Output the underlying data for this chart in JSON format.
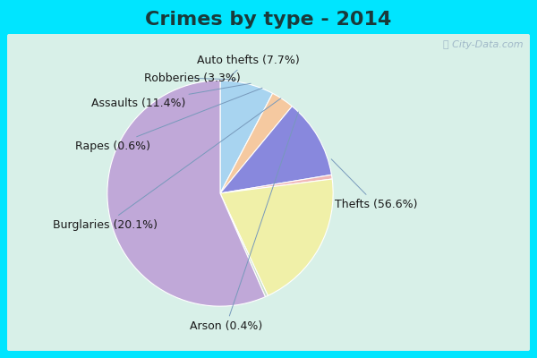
{
  "title": "Crimes by type - 2014",
  "labels": [
    "Auto thefts (7.7%)",
    "Robberies (3.3%)",
    "Assaults (11.4%)",
    "Rapes (0.6%)",
    "Burglaries (20.1%)",
    "Arson (0.4%)",
    "Thefts (56.6%)"
  ],
  "values": [
    7.7,
    3.3,
    11.4,
    0.6,
    20.1,
    0.4,
    56.6
  ],
  "colors": [
    "#a8d4f0",
    "#f5c9a0",
    "#8888dd",
    "#f0b8b8",
    "#f0f0a8",
    "#c8ddc8",
    "#c0a8d8"
  ],
  "bg_cyan": "#00e5ff",
  "bg_inner": "#d8f0e8",
  "title_color": "#1a3a3a",
  "label_color": "#1a1a1a",
  "title_fontsize": 16,
  "label_fontsize": 9,
  "watermark_color": "#a0b8c8"
}
